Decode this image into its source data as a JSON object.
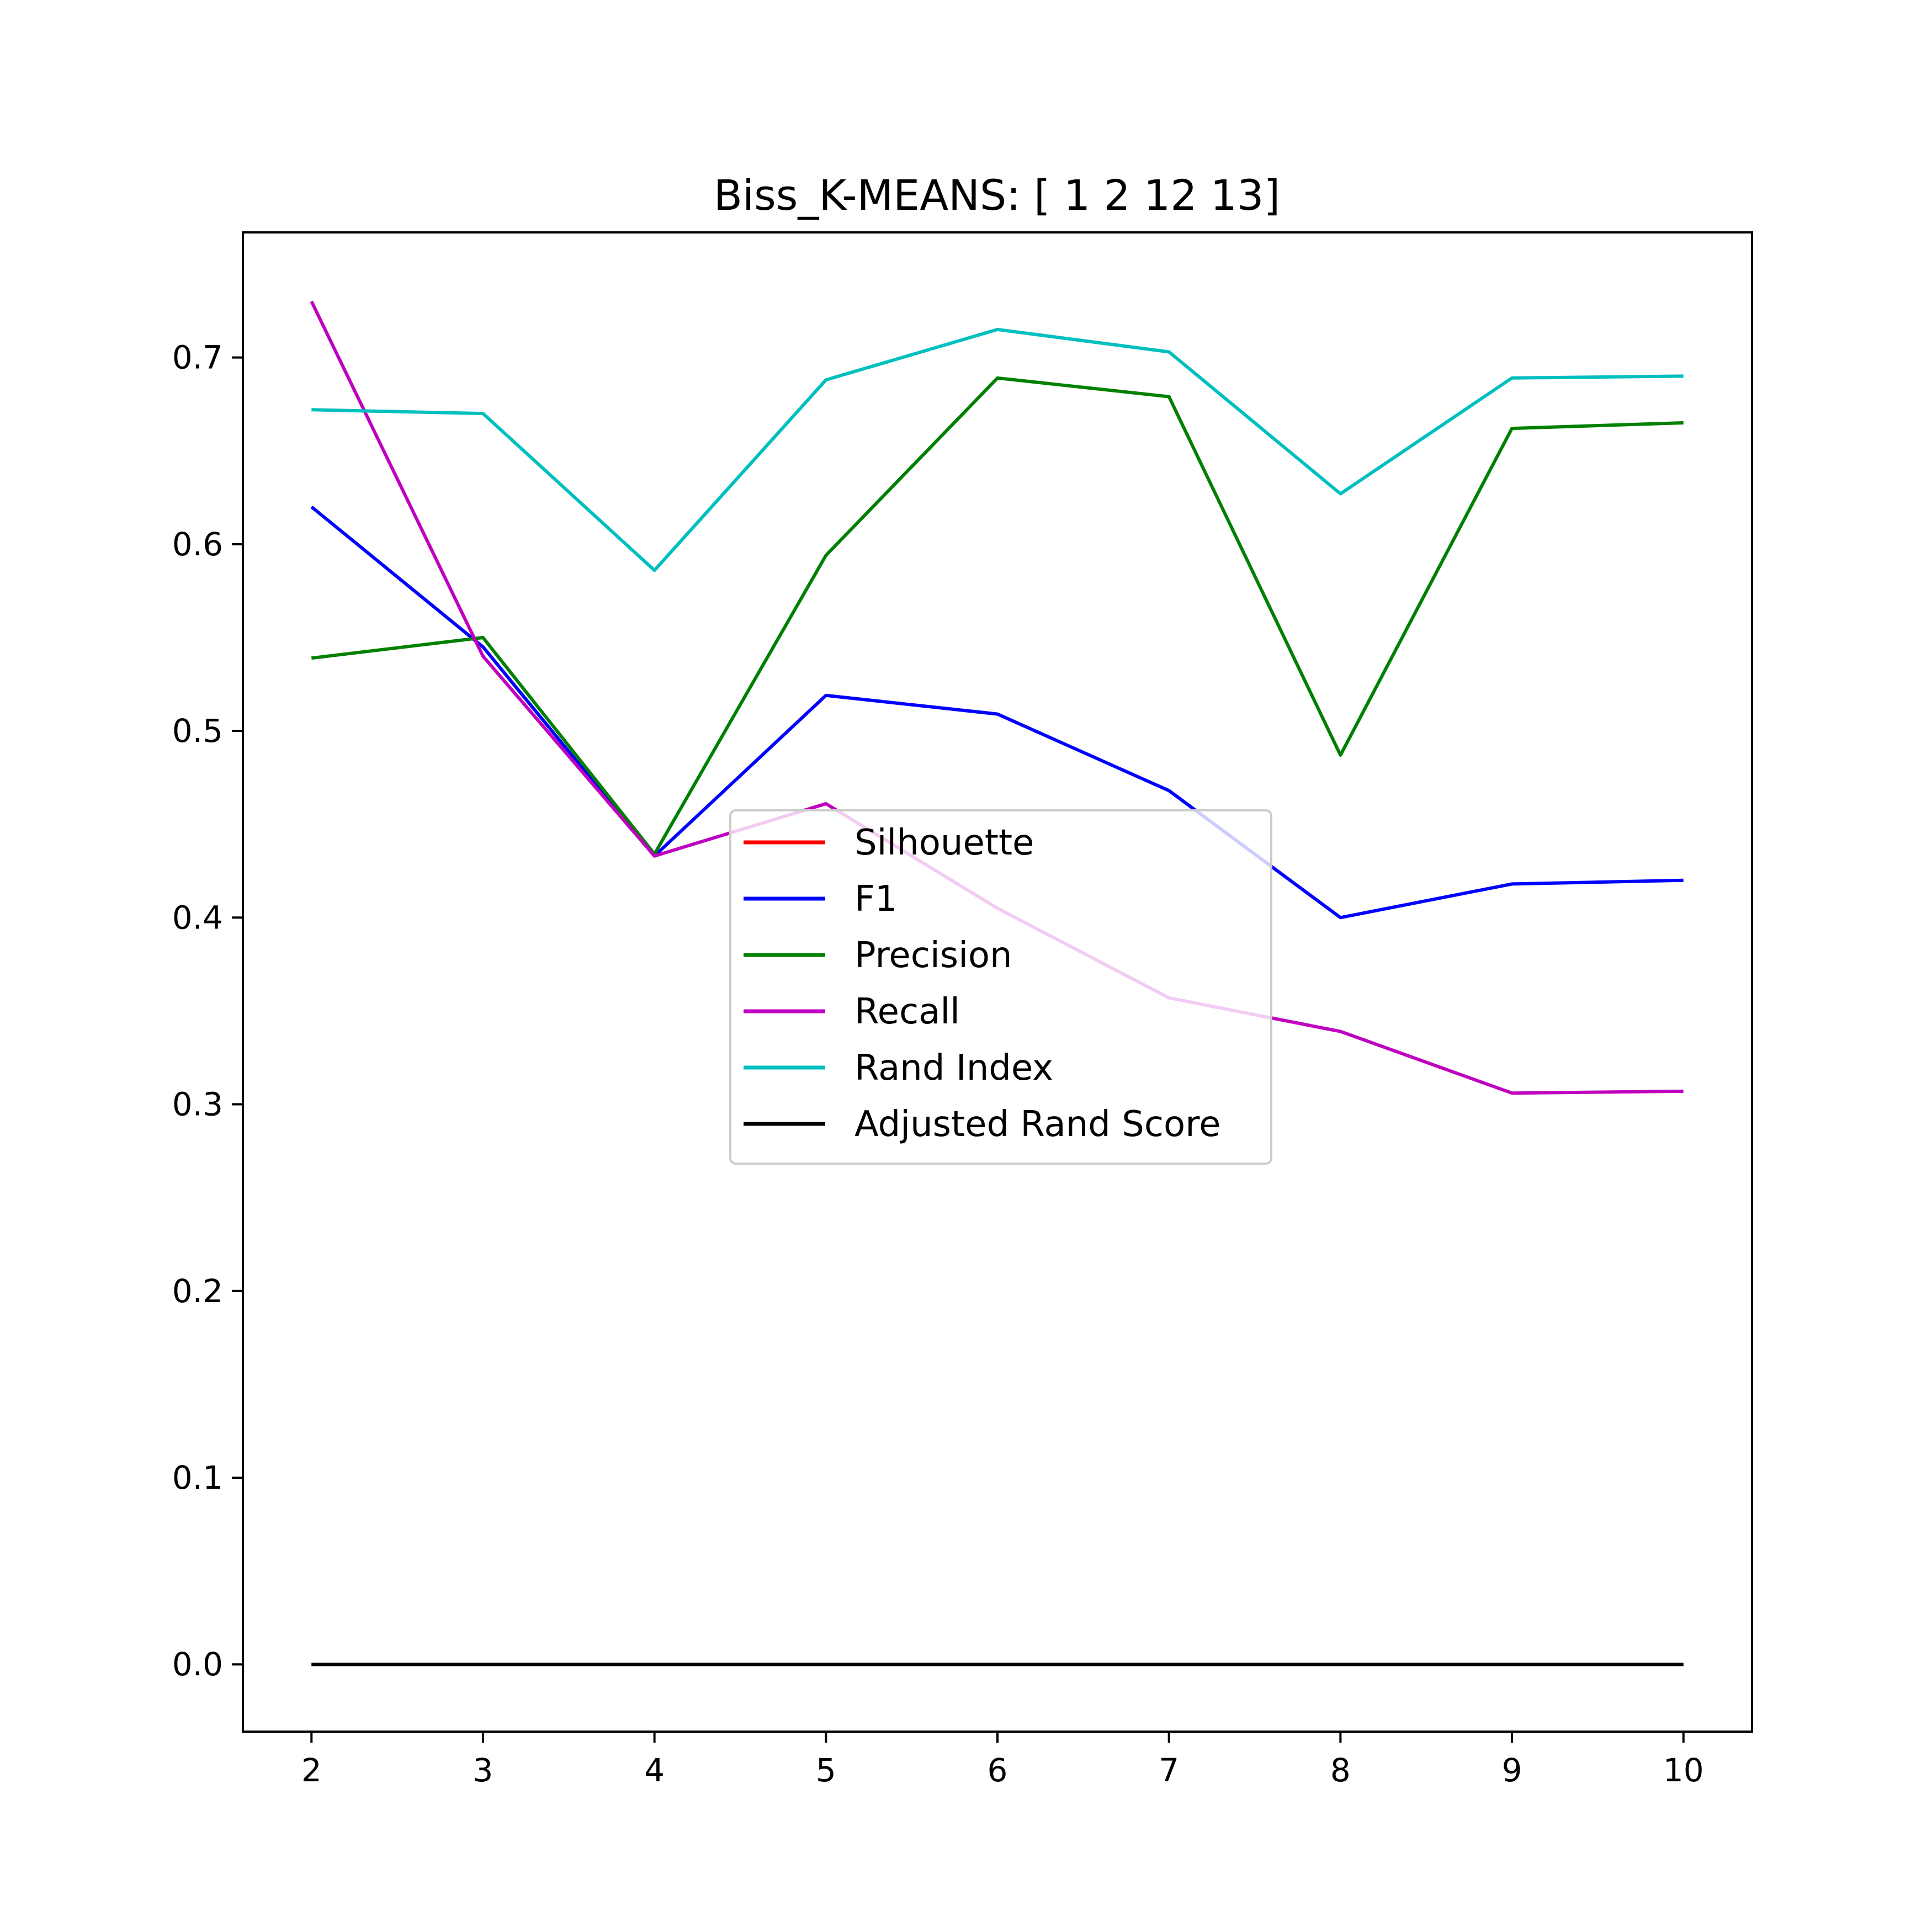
{
  "chart_data": {
    "type": "line",
    "title": "Biss_K-MEANS: [ 1  2 12 13]",
    "xlabel": "",
    "ylabel": "",
    "x": [
      2,
      3,
      4,
      5,
      6,
      7,
      8,
      9,
      10
    ],
    "xlim": [
      1.6,
      10.4
    ],
    "ylim": [
      -0.036,
      0.767
    ],
    "xticks": [
      "2",
      "3",
      "4",
      "5",
      "6",
      "7",
      "8",
      "9",
      "10"
    ],
    "yticks": [
      "0.0",
      "0.1",
      "0.2",
      "0.3",
      "0.4",
      "0.5",
      "0.6",
      "0.7"
    ],
    "grid": false,
    "legend_position": "center",
    "series": [
      {
        "name": "Silhouette",
        "color": "#ff0000",
        "values": [
          0,
          0,
          0,
          0,
          0,
          0,
          0,
          0,
          0
        ]
      },
      {
        "name": "F1",
        "color": "#0000ff",
        "values": [
          0.62,
          0.545,
          0.433,
          0.519,
          0.509,
          0.468,
          0.4,
          0.418,
          0.42
        ]
      },
      {
        "name": "Precision",
        "color": "#008000",
        "values": [
          0.539,
          0.55,
          0.434,
          0.594,
          0.689,
          0.679,
          0.487,
          0.662,
          0.665
        ]
      },
      {
        "name": "Recall",
        "color": "#bf00bf",
        "values": [
          0.73,
          0.54,
          0.433,
          0.461,
          0.405,
          0.357,
          0.339,
          0.306,
          0.307
        ]
      },
      {
        "name": "Rand Index",
        "color": "#00bfbf",
        "values": [
          0.672,
          0.67,
          0.586,
          0.688,
          0.715,
          0.703,
          0.627,
          0.689,
          0.69
        ]
      },
      {
        "name": "Adjusted Rand Score",
        "color": "#000000",
        "values": [
          0,
          0,
          0,
          0,
          0,
          0,
          0,
          0,
          0
        ]
      }
    ]
  }
}
